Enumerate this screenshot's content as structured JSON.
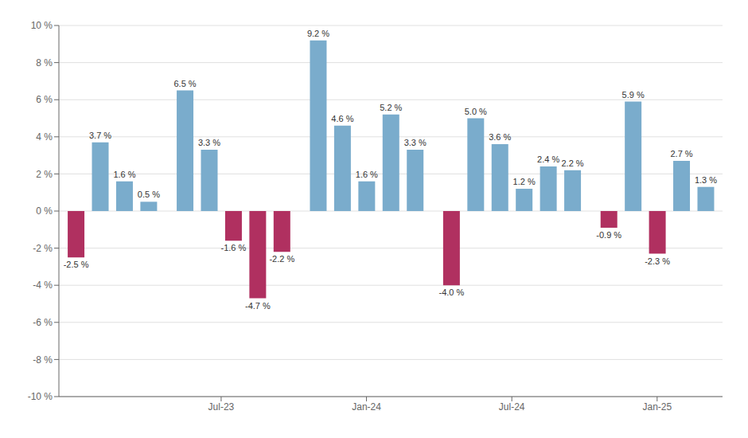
{
  "chart_data": {
    "type": "bar",
    "x": [
      1,
      2,
      3,
      4,
      5.5,
      6.5,
      7.5,
      8.5,
      9.5,
      11,
      12,
      13,
      14,
      15,
      16.5,
      17.5,
      18.5,
      19.5,
      20.5,
      21.5,
      23,
      24,
      25,
      26,
      27
    ],
    "values": [
      -2.5,
      3.7,
      1.6,
      0.5,
      6.5,
      3.3,
      -1.6,
      -4.7,
      -2.2,
      9.2,
      4.6,
      1.6,
      5.2,
      3.3,
      -4.0,
      5.0,
      3.6,
      1.2,
      2.4,
      2.2,
      -0.9,
      5.9,
      -2.3,
      2.7,
      1.3
    ],
    "value_labels": [
      "-2.5 %",
      "3.7 %",
      "1.6 %",
      "0.5 %",
      "6.5 %",
      "3.3 %",
      "-1.6 %",
      "-4.7 %",
      "-2.2 %",
      "9.2 %",
      "4.6 %",
      "1.6 %",
      "5.2 %",
      "3.3 %",
      "-4.0 %",
      "5.0 %",
      "3.6 %",
      "1.2 %",
      "2.4 %",
      "2.2 %",
      "-0.9 %",
      "5.9 %",
      "-2.3 %",
      "2.7 %",
      "1.3 %"
    ],
    "colors": [
      "#b03060",
      "#7aaccc",
      "#7aaccc",
      "#7aaccc",
      "#7aaccc",
      "#7aaccc",
      "#b03060",
      "#b03060",
      "#b03060",
      "#7aaccc",
      "#7aaccc",
      "#7aaccc",
      "#7aaccc",
      "#7aaccc",
      "#b03060",
      "#7aaccc",
      "#7aaccc",
      "#7aaccc",
      "#7aaccc",
      "#7aaccc",
      "#b03060",
      "#7aaccc",
      "#b03060",
      "#7aaccc",
      "#7aaccc"
    ],
    "data_labels": true,
    "xlim": [
      0.3,
      27.7
    ],
    "xticks": [
      {
        "value": 7.0,
        "label": "Jul-23"
      },
      {
        "value": 13.0,
        "label": "Jan-24"
      },
      {
        "value": 19.0,
        "label": "Jul-24"
      },
      {
        "value": 25.0,
        "label": "Jan-25"
      }
    ],
    "ylim": [
      -10,
      10
    ],
    "yticks": [
      {
        "value": -10,
        "label": "-10 %"
      },
      {
        "value": -8,
        "label": "-8 %"
      },
      {
        "value": -6,
        "label": "-6 %"
      },
      {
        "value": -4,
        "label": "-4 %"
      },
      {
        "value": -2,
        "label": "-2 %"
      },
      {
        "value": 0,
        "label": "0 %"
      },
      {
        "value": 2,
        "label": "2 %"
      },
      {
        "value": 4,
        "label": "4 %"
      },
      {
        "value": 6,
        "label": "6 %"
      },
      {
        "value": 8,
        "label": "8 %"
      },
      {
        "value": 10,
        "label": "10 %"
      }
    ],
    "grid": true
  }
}
